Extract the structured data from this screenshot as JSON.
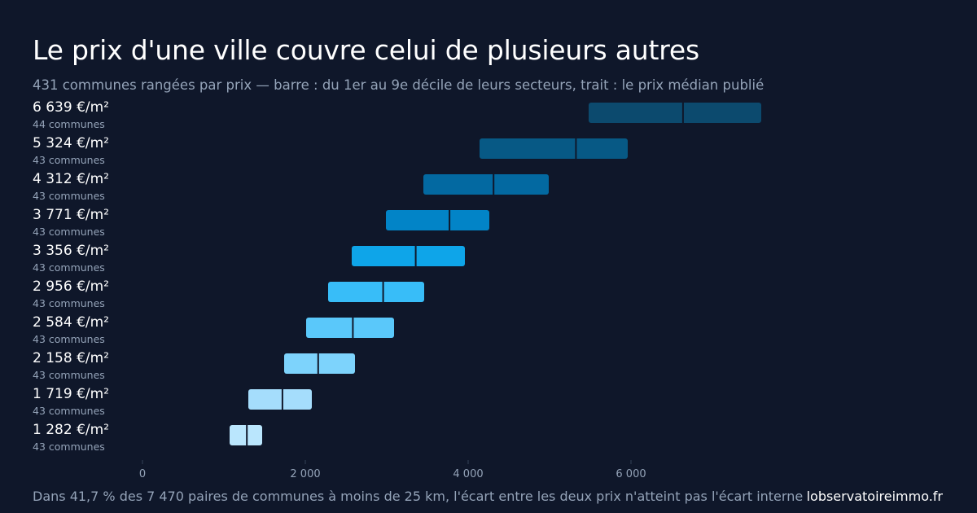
{
  "title": "Le prix d'une ville couvre celui de plusieurs autres",
  "subtitle": "431 communes rangées par prix — barre : du 1er au 9e décile de leurs secteurs, trait : le prix médian publié",
  "footer": "Dans 41,7 % des 7 470 paires de communes à moins de 25 km, l'écart entre les deux prix n'atteint pas l'écart interne",
  "brand": "lobservatoireimmo.fr",
  "chart_data": {
    "type": "bar",
    "orientation": "horizontal-range",
    "xlim": [
      0,
      8000
    ],
    "xticks": [
      0,
      2000,
      4000,
      6000
    ],
    "xtick_labels": [
      "0",
      "2 000",
      "4 000",
      "6 000"
    ],
    "grid": false,
    "legend": "none",
    "rows": [
      {
        "label": "6 639 €/m²",
        "count_label": "44 communes",
        "d1": 5480,
        "d9": 7600,
        "median": 6639,
        "color": "#0c4a6e"
      },
      {
        "label": "5 324 €/m²",
        "count_label": "43 communes",
        "d1": 4140,
        "d9": 5960,
        "median": 5324,
        "color": "#075985"
      },
      {
        "label": "4 312 €/m²",
        "count_label": "43 communes",
        "d1": 3450,
        "d9": 4990,
        "median": 4312,
        "color": "#0369a1"
      },
      {
        "label": "3 771 €/m²",
        "count_label": "43 communes",
        "d1": 2990,
        "d9": 4260,
        "median": 3771,
        "color": "#0284c7"
      },
      {
        "label": "3 356 €/m²",
        "count_label": "43 communes",
        "d1": 2570,
        "d9": 3960,
        "median": 3356,
        "color": "#0ea5e9"
      },
      {
        "label": "2 956 €/m²",
        "count_label": "43 communes",
        "d1": 2280,
        "d9": 3460,
        "median": 2956,
        "color": "#38bdf8"
      },
      {
        "label": "2 584 €/m²",
        "count_label": "43 communes",
        "d1": 2010,
        "d9": 3090,
        "median": 2584,
        "color": "#5ac8fa"
      },
      {
        "label": "2 158 €/m²",
        "count_label": "43 communes",
        "d1": 1740,
        "d9": 2610,
        "median": 2158,
        "color": "#7dd3fc"
      },
      {
        "label": "1 719 €/m²",
        "count_label": "43 communes",
        "d1": 1300,
        "d9": 2080,
        "median": 1719,
        "color": "#a5ddfc"
      },
      {
        "label": "1 282 €/m²",
        "count_label": "43 communes",
        "d1": 1070,
        "d9": 1470,
        "median": 1282,
        "color": "#bae6fd"
      }
    ]
  }
}
